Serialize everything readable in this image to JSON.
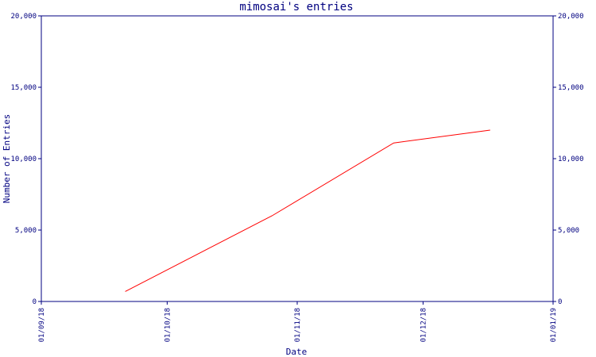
{
  "chart_data": {
    "type": "line",
    "title": "mimosai's entries",
    "xlabel": "Date",
    "ylabel": "Number of Entries",
    "x_tick_labels": [
      "01/09/18",
      "01/10/18",
      "01/11/18",
      "01/12/18",
      "01/01/19"
    ],
    "x_ticks": [
      "2018-09-01",
      "2018-10-01",
      "2018-11-01",
      "2018-12-01",
      "2019-01-01"
    ],
    "xlim": [
      "2018-09-01",
      "2019-01-01"
    ],
    "y_tick_labels": [
      "0",
      "5,000",
      "10,000",
      "15,000",
      "20,000"
    ],
    "y_ticks": [
      0,
      5000,
      10000,
      15000,
      20000
    ],
    "ylim": [
      0,
      20000
    ],
    "grid": false,
    "series": [
      {
        "color": "#ff0000",
        "x": [
          "2018-09-21",
          "2018-10-26",
          "2018-11-24",
          "2018-12-17"
        ],
        "y": [
          700,
          6000,
          11100,
          12000
        ]
      }
    ]
  },
  "colors": {
    "axis": "#000080",
    "line": "#ff0000",
    "background": "#ffffff"
  }
}
